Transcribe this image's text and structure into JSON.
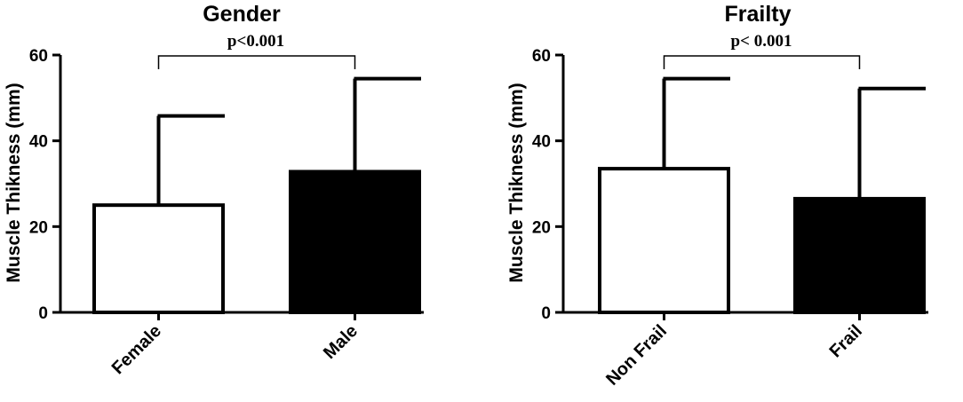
{
  "chart_data": [
    {
      "type": "bar",
      "title": "Gender",
      "ylabel": "Muscle Thikness (mm)",
      "xlabel": "",
      "ylim": [
        0,
        60
      ],
      "yticks": [
        "0",
        "20",
        "40",
        "60"
      ],
      "categories": [
        "Female",
        "Male"
      ],
      "values": [
        25,
        32.8
      ],
      "error_upper": [
        45.8,
        54.5
      ],
      "bar_colors": [
        "#ffffff",
        "#000000"
      ],
      "annotation": "p<0.001",
      "grid": false,
      "legend": "none"
    },
    {
      "type": "bar",
      "title": "Frailty",
      "ylabel": "Muscle Thikness (mm)",
      "xlabel": "",
      "ylim": [
        0,
        60
      ],
      "yticks": [
        "0",
        "20",
        "40",
        "60"
      ],
      "categories": [
        "Non Frail",
        "Frail"
      ],
      "values": [
        33.5,
        26.5
      ],
      "error_upper": [
        54.5,
        52.2
      ],
      "bar_colors": [
        "#ffffff",
        "#000000"
      ],
      "annotation": "p< 0.001",
      "grid": false,
      "legend": "none"
    }
  ]
}
